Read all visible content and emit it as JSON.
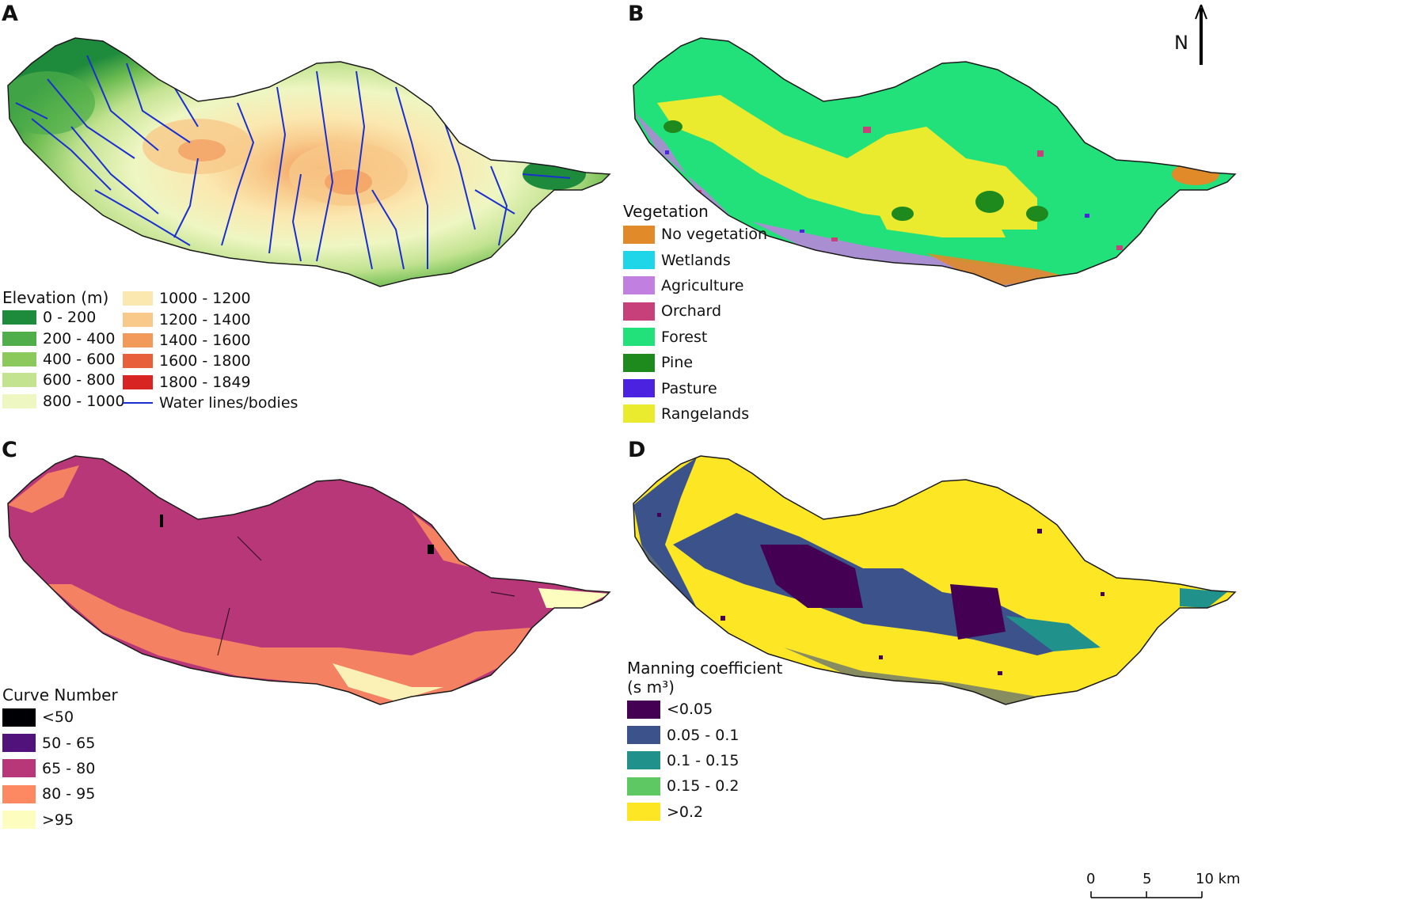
{
  "panels": {
    "a": {
      "letter": "A",
      "legend": {
        "title": "Elevation (m)",
        "items": [
          {
            "label": "0 - 200",
            "color": "#1e8a3c"
          },
          {
            "label": "200 - 400",
            "color": "#4fae4a"
          },
          {
            "label": "400 - 600",
            "color": "#8cc95c"
          },
          {
            "label": "600 - 800",
            "color": "#c3e391"
          },
          {
            "label": "800 - 1000",
            "color": "#eef6c2"
          },
          {
            "label": "1000 - 1200",
            "color": "#fbe8b0"
          },
          {
            "label": "1200 - 1400",
            "color": "#f8c98a"
          },
          {
            "label": "1400 - 1600",
            "color": "#f29a5c"
          },
          {
            "label": "1600 - 1800",
            "color": "#e8603b"
          },
          {
            "label": "1800 - 1849",
            "color": "#d92424"
          }
        ],
        "water_label": "Water lines/bodies",
        "water_color": "#1a2fd0"
      }
    },
    "b": {
      "letter": "B",
      "legend": {
        "title": "Vegetation",
        "items": [
          {
            "label": "No vegetation",
            "color": "#e08a2a"
          },
          {
            "label": "Wetlands",
            "color": "#1ed6e8"
          },
          {
            "label": "Agriculture",
            "color": "#c180e0"
          },
          {
            "label": "Orchard",
            "color": "#c8407a"
          },
          {
            "label": "Forest",
            "color": "#22e07a"
          },
          {
            "label": "Pine",
            "color": "#1e8a1e"
          },
          {
            "label": "Pasture",
            "color": "#4a22e0"
          },
          {
            "label": "Rangelands",
            "color": "#eaea2e"
          }
        ]
      },
      "north_label": "N"
    },
    "c": {
      "letter": "C",
      "legend": {
        "title": "Curve Number",
        "items": [
          {
            "label": "<50",
            "color": "#000004"
          },
          {
            "label": "50 - 65",
            "color": "#51127c"
          },
          {
            "label": "65 - 80",
            "color": "#b73779"
          },
          {
            "label": "80 - 95",
            "color": "#fc8961"
          },
          {
            "label": ">95",
            "color": "#fcfdbf"
          }
        ]
      }
    },
    "d": {
      "letter": "D",
      "legend": {
        "title_line1": "Manning coefficient",
        "title_line2": "(s m³)",
        "items": [
          {
            "label": "<0.05",
            "color": "#440154"
          },
          {
            "label": "0.05 - 0.1",
            "color": "#3b528b"
          },
          {
            "label": "0.1 - 0.15",
            "color": "#21918c"
          },
          {
            "label": "0.15 - 0.2",
            "color": "#5ec962"
          },
          {
            "label": ">0.2",
            "color": "#fde725"
          }
        ]
      },
      "scalebar": {
        "ticks": [
          "0",
          "5",
          "10 km"
        ]
      }
    }
  }
}
